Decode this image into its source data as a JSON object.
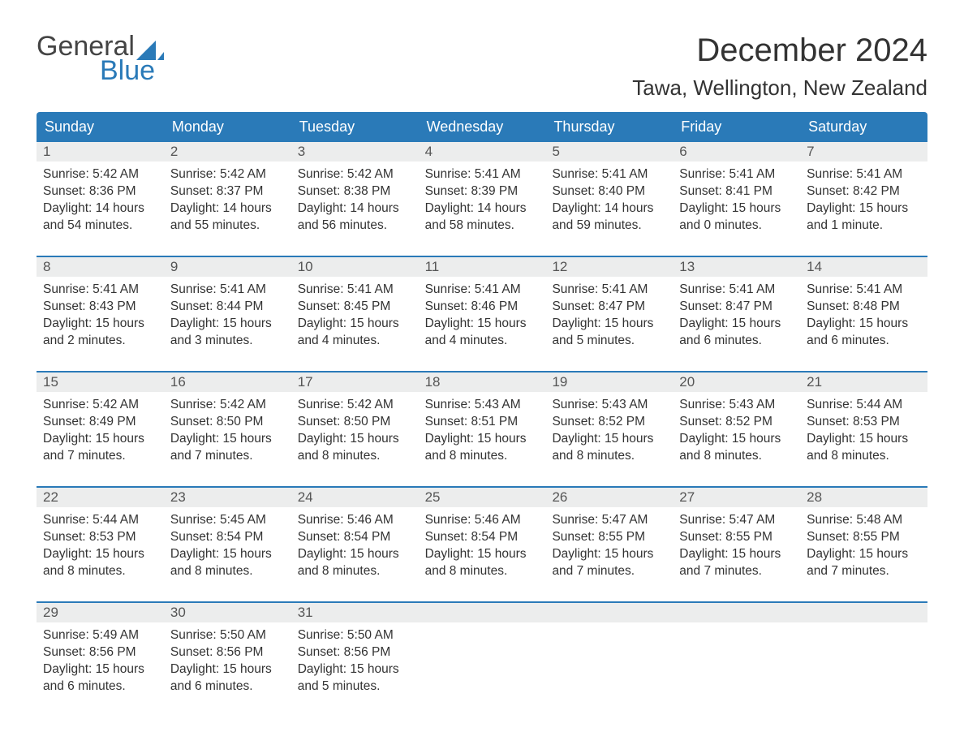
{
  "logo": {
    "word1": "General",
    "word2": "Blue"
  },
  "title": "December 2024",
  "location": "Tawa, Wellington, New Zealand",
  "colors": {
    "header_bg": "#2a7ab8",
    "daynum_bg": "#eceded",
    "text": "#333333",
    "logo_gray": "#444444",
    "logo_blue": "#2a7ab8"
  },
  "day_headers": [
    "Sunday",
    "Monday",
    "Tuesday",
    "Wednesday",
    "Thursday",
    "Friday",
    "Saturday"
  ],
  "weeks": [
    [
      {
        "n": "1",
        "sr": "Sunrise: 5:42 AM",
        "ss": "Sunset: 8:36 PM",
        "d1": "Daylight: 14 hours",
        "d2": "and 54 minutes."
      },
      {
        "n": "2",
        "sr": "Sunrise: 5:42 AM",
        "ss": "Sunset: 8:37 PM",
        "d1": "Daylight: 14 hours",
        "d2": "and 55 minutes."
      },
      {
        "n": "3",
        "sr": "Sunrise: 5:42 AM",
        "ss": "Sunset: 8:38 PM",
        "d1": "Daylight: 14 hours",
        "d2": "and 56 minutes."
      },
      {
        "n": "4",
        "sr": "Sunrise: 5:41 AM",
        "ss": "Sunset: 8:39 PM",
        "d1": "Daylight: 14 hours",
        "d2": "and 58 minutes."
      },
      {
        "n": "5",
        "sr": "Sunrise: 5:41 AM",
        "ss": "Sunset: 8:40 PM",
        "d1": "Daylight: 14 hours",
        "d2": "and 59 minutes."
      },
      {
        "n": "6",
        "sr": "Sunrise: 5:41 AM",
        "ss": "Sunset: 8:41 PM",
        "d1": "Daylight: 15 hours",
        "d2": "and 0 minutes."
      },
      {
        "n": "7",
        "sr": "Sunrise: 5:41 AM",
        "ss": "Sunset: 8:42 PM",
        "d1": "Daylight: 15 hours",
        "d2": "and 1 minute."
      }
    ],
    [
      {
        "n": "8",
        "sr": "Sunrise: 5:41 AM",
        "ss": "Sunset: 8:43 PM",
        "d1": "Daylight: 15 hours",
        "d2": "and 2 minutes."
      },
      {
        "n": "9",
        "sr": "Sunrise: 5:41 AM",
        "ss": "Sunset: 8:44 PM",
        "d1": "Daylight: 15 hours",
        "d2": "and 3 minutes."
      },
      {
        "n": "10",
        "sr": "Sunrise: 5:41 AM",
        "ss": "Sunset: 8:45 PM",
        "d1": "Daylight: 15 hours",
        "d2": "and 4 minutes."
      },
      {
        "n": "11",
        "sr": "Sunrise: 5:41 AM",
        "ss": "Sunset: 8:46 PM",
        "d1": "Daylight: 15 hours",
        "d2": "and 4 minutes."
      },
      {
        "n": "12",
        "sr": "Sunrise: 5:41 AM",
        "ss": "Sunset: 8:47 PM",
        "d1": "Daylight: 15 hours",
        "d2": "and 5 minutes."
      },
      {
        "n": "13",
        "sr": "Sunrise: 5:41 AM",
        "ss": "Sunset: 8:47 PM",
        "d1": "Daylight: 15 hours",
        "d2": "and 6 minutes."
      },
      {
        "n": "14",
        "sr": "Sunrise: 5:41 AM",
        "ss": "Sunset: 8:48 PM",
        "d1": "Daylight: 15 hours",
        "d2": "and 6 minutes."
      }
    ],
    [
      {
        "n": "15",
        "sr": "Sunrise: 5:42 AM",
        "ss": "Sunset: 8:49 PM",
        "d1": "Daylight: 15 hours",
        "d2": "and 7 minutes."
      },
      {
        "n": "16",
        "sr": "Sunrise: 5:42 AM",
        "ss": "Sunset: 8:50 PM",
        "d1": "Daylight: 15 hours",
        "d2": "and 7 minutes."
      },
      {
        "n": "17",
        "sr": "Sunrise: 5:42 AM",
        "ss": "Sunset: 8:50 PM",
        "d1": "Daylight: 15 hours",
        "d2": "and 8 minutes."
      },
      {
        "n": "18",
        "sr": "Sunrise: 5:43 AM",
        "ss": "Sunset: 8:51 PM",
        "d1": "Daylight: 15 hours",
        "d2": "and 8 minutes."
      },
      {
        "n": "19",
        "sr": "Sunrise: 5:43 AM",
        "ss": "Sunset: 8:52 PM",
        "d1": "Daylight: 15 hours",
        "d2": "and 8 minutes."
      },
      {
        "n": "20",
        "sr": "Sunrise: 5:43 AM",
        "ss": "Sunset: 8:52 PM",
        "d1": "Daylight: 15 hours",
        "d2": "and 8 minutes."
      },
      {
        "n": "21",
        "sr": "Sunrise: 5:44 AM",
        "ss": "Sunset: 8:53 PM",
        "d1": "Daylight: 15 hours",
        "d2": "and 8 minutes."
      }
    ],
    [
      {
        "n": "22",
        "sr": "Sunrise: 5:44 AM",
        "ss": "Sunset: 8:53 PM",
        "d1": "Daylight: 15 hours",
        "d2": "and 8 minutes."
      },
      {
        "n": "23",
        "sr": "Sunrise: 5:45 AM",
        "ss": "Sunset: 8:54 PM",
        "d1": "Daylight: 15 hours",
        "d2": "and 8 minutes."
      },
      {
        "n": "24",
        "sr": "Sunrise: 5:46 AM",
        "ss": "Sunset: 8:54 PM",
        "d1": "Daylight: 15 hours",
        "d2": "and 8 minutes."
      },
      {
        "n": "25",
        "sr": "Sunrise: 5:46 AM",
        "ss": "Sunset: 8:54 PM",
        "d1": "Daylight: 15 hours",
        "d2": "and 8 minutes."
      },
      {
        "n": "26",
        "sr": "Sunrise: 5:47 AM",
        "ss": "Sunset: 8:55 PM",
        "d1": "Daylight: 15 hours",
        "d2": "and 7 minutes."
      },
      {
        "n": "27",
        "sr": "Sunrise: 5:47 AM",
        "ss": "Sunset: 8:55 PM",
        "d1": "Daylight: 15 hours",
        "d2": "and 7 minutes."
      },
      {
        "n": "28",
        "sr": "Sunrise: 5:48 AM",
        "ss": "Sunset: 8:55 PM",
        "d1": "Daylight: 15 hours",
        "d2": "and 7 minutes."
      }
    ],
    [
      {
        "n": "29",
        "sr": "Sunrise: 5:49 AM",
        "ss": "Sunset: 8:56 PM",
        "d1": "Daylight: 15 hours",
        "d2": "and 6 minutes."
      },
      {
        "n": "30",
        "sr": "Sunrise: 5:50 AM",
        "ss": "Sunset: 8:56 PM",
        "d1": "Daylight: 15 hours",
        "d2": "and 6 minutes."
      },
      {
        "n": "31",
        "sr": "Sunrise: 5:50 AM",
        "ss": "Sunset: 8:56 PM",
        "d1": "Daylight: 15 hours",
        "d2": "and 5 minutes."
      },
      {
        "n": "",
        "sr": "",
        "ss": "",
        "d1": "",
        "d2": ""
      },
      {
        "n": "",
        "sr": "",
        "ss": "",
        "d1": "",
        "d2": ""
      },
      {
        "n": "",
        "sr": "",
        "ss": "",
        "d1": "",
        "d2": ""
      },
      {
        "n": "",
        "sr": "",
        "ss": "",
        "d1": "",
        "d2": ""
      }
    ]
  ]
}
